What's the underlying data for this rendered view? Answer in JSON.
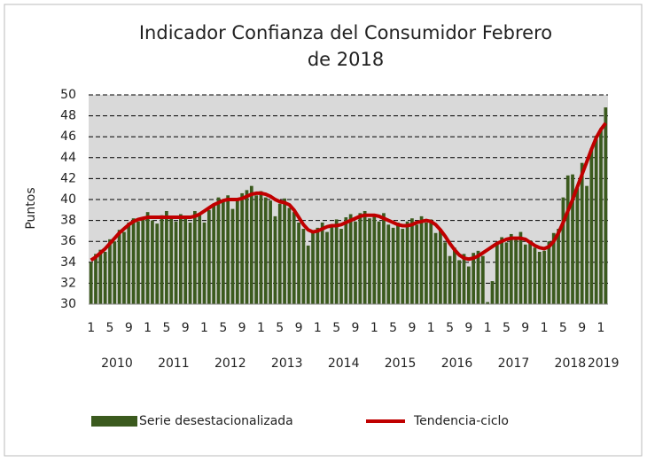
{
  "chart_data": {
    "type": "bar_line",
    "title": "Indicador Confianza del Consumidor Febrero de 2018",
    "y_label": "Puntos",
    "categories": [
      "1",
      null,
      null,
      null,
      "5",
      null,
      null,
      null,
      "9",
      null,
      null,
      null,
      "1",
      null,
      null,
      null,
      "5",
      null,
      null,
      null,
      "9",
      null,
      null,
      null,
      "1",
      null,
      null,
      null,
      "5",
      null,
      null,
      null,
      "9",
      null,
      null,
      null,
      "1",
      null,
      null,
      null,
      "5",
      null,
      null,
      null,
      "9",
      null,
      null,
      null,
      "1",
      null,
      null,
      null,
      "5",
      null,
      null,
      null,
      "9",
      null,
      null,
      null,
      "1",
      null,
      null,
      null,
      "5",
      null,
      null,
      null,
      "9",
      null,
      null,
      null,
      "1",
      null,
      null,
      null,
      "5",
      null,
      null,
      null,
      "9",
      null,
      null,
      null,
      "1",
      null,
      null,
      null,
      "5",
      null,
      null,
      null,
      "9",
      null,
      null,
      null,
      "1",
      null,
      null,
      null,
      "5",
      null,
      null,
      null,
      "9",
      null,
      null,
      null,
      "1",
      null
    ],
    "years": [
      "2010",
      "2011",
      "2012",
      "2013",
      "2014",
      "2015",
      "2016",
      "2017",
      "2018",
      "2019"
    ],
    "series": [
      {
        "name": "Serie desestacionalizada",
        "type": "bar",
        "color": "#3b5a1e",
        "values": [
          34.0,
          34.8,
          35.2,
          35.0,
          36.2,
          36.0,
          37.1,
          36.9,
          37.8,
          38.2,
          37.9,
          38.1,
          38.8,
          38.0,
          37.7,
          38.5,
          38.9,
          38.2,
          37.9,
          38.6,
          38.4,
          37.8,
          38.9,
          38.5,
          37.8,
          39.0,
          39.6,
          40.2,
          39.8,
          40.4,
          39.1,
          40.0,
          40.6,
          40.9,
          41.3,
          40.4,
          40.8,
          40.2,
          39.9,
          38.4,
          39.6,
          40.1,
          39.2,
          38.8,
          37.8,
          37.2,
          35.6,
          36.8,
          37.3,
          37.8,
          36.9,
          37.6,
          38.1,
          37.2,
          38.3,
          38.6,
          37.9,
          38.7,
          38.9,
          38.2,
          38.4,
          37.9,
          38.7,
          37.6,
          37.3,
          37.8,
          37.2,
          37.9,
          38.2,
          37.6,
          38.4,
          37.8,
          38.1,
          36.8,
          37.2,
          35.9,
          34.6,
          35.4,
          34.2,
          34.8,
          33.6,
          34.9,
          35.1,
          34.6,
          30.2,
          32.2,
          35.8,
          36.4,
          35.9,
          36.7,
          36.2,
          36.9,
          35.7,
          36.1,
          35.4,
          35.0,
          35.1,
          36.0,
          36.8,
          37.2,
          40.2,
          42.3,
          42.4,
          41.1,
          43.5,
          41.3,
          44.9,
          46.1,
          46.8,
          48.8
        ]
      },
      {
        "name": "Tendencia-ciclo",
        "type": "line",
        "color": "#c00000",
        "values": [
          34.2,
          34.5,
          34.9,
          35.3,
          35.8,
          36.3,
          36.8,
          37.2,
          37.6,
          37.9,
          38.1,
          38.2,
          38.3,
          38.3,
          38.3,
          38.3,
          38.3,
          38.3,
          38.3,
          38.3,
          38.3,
          38.3,
          38.4,
          38.6,
          38.9,
          39.2,
          39.5,
          39.7,
          39.9,
          40.0,
          40.0,
          40.0,
          40.1,
          40.3,
          40.5,
          40.6,
          40.6,
          40.5,
          40.3,
          40.0,
          39.8,
          39.7,
          39.5,
          39.0,
          38.3,
          37.6,
          37.1,
          36.9,
          37.0,
          37.2,
          37.4,
          37.5,
          37.5,
          37.6,
          37.8,
          38.0,
          38.2,
          38.4,
          38.5,
          38.5,
          38.5,
          38.4,
          38.2,
          38.0,
          37.8,
          37.6,
          37.5,
          37.5,
          37.6,
          37.8,
          37.9,
          38.0,
          37.9,
          37.6,
          37.1,
          36.5,
          35.8,
          35.2,
          34.7,
          34.4,
          34.3,
          34.4,
          34.6,
          34.9,
          35.2,
          35.5,
          35.8,
          36.0,
          36.2,
          36.3,
          36.3,
          36.3,
          36.2,
          35.9,
          35.6,
          35.4,
          35.3,
          35.5,
          36.0,
          36.8,
          37.8,
          38.9,
          40.0,
          41.2,
          42.4,
          43.6,
          44.8,
          45.9,
          46.7,
          47.3
        ]
      }
    ],
    "ylim": [
      30,
      50
    ],
    "yticks": [
      30,
      32,
      34,
      36,
      38,
      40,
      42,
      44,
      46,
      48,
      50
    ],
    "grid": true
  }
}
